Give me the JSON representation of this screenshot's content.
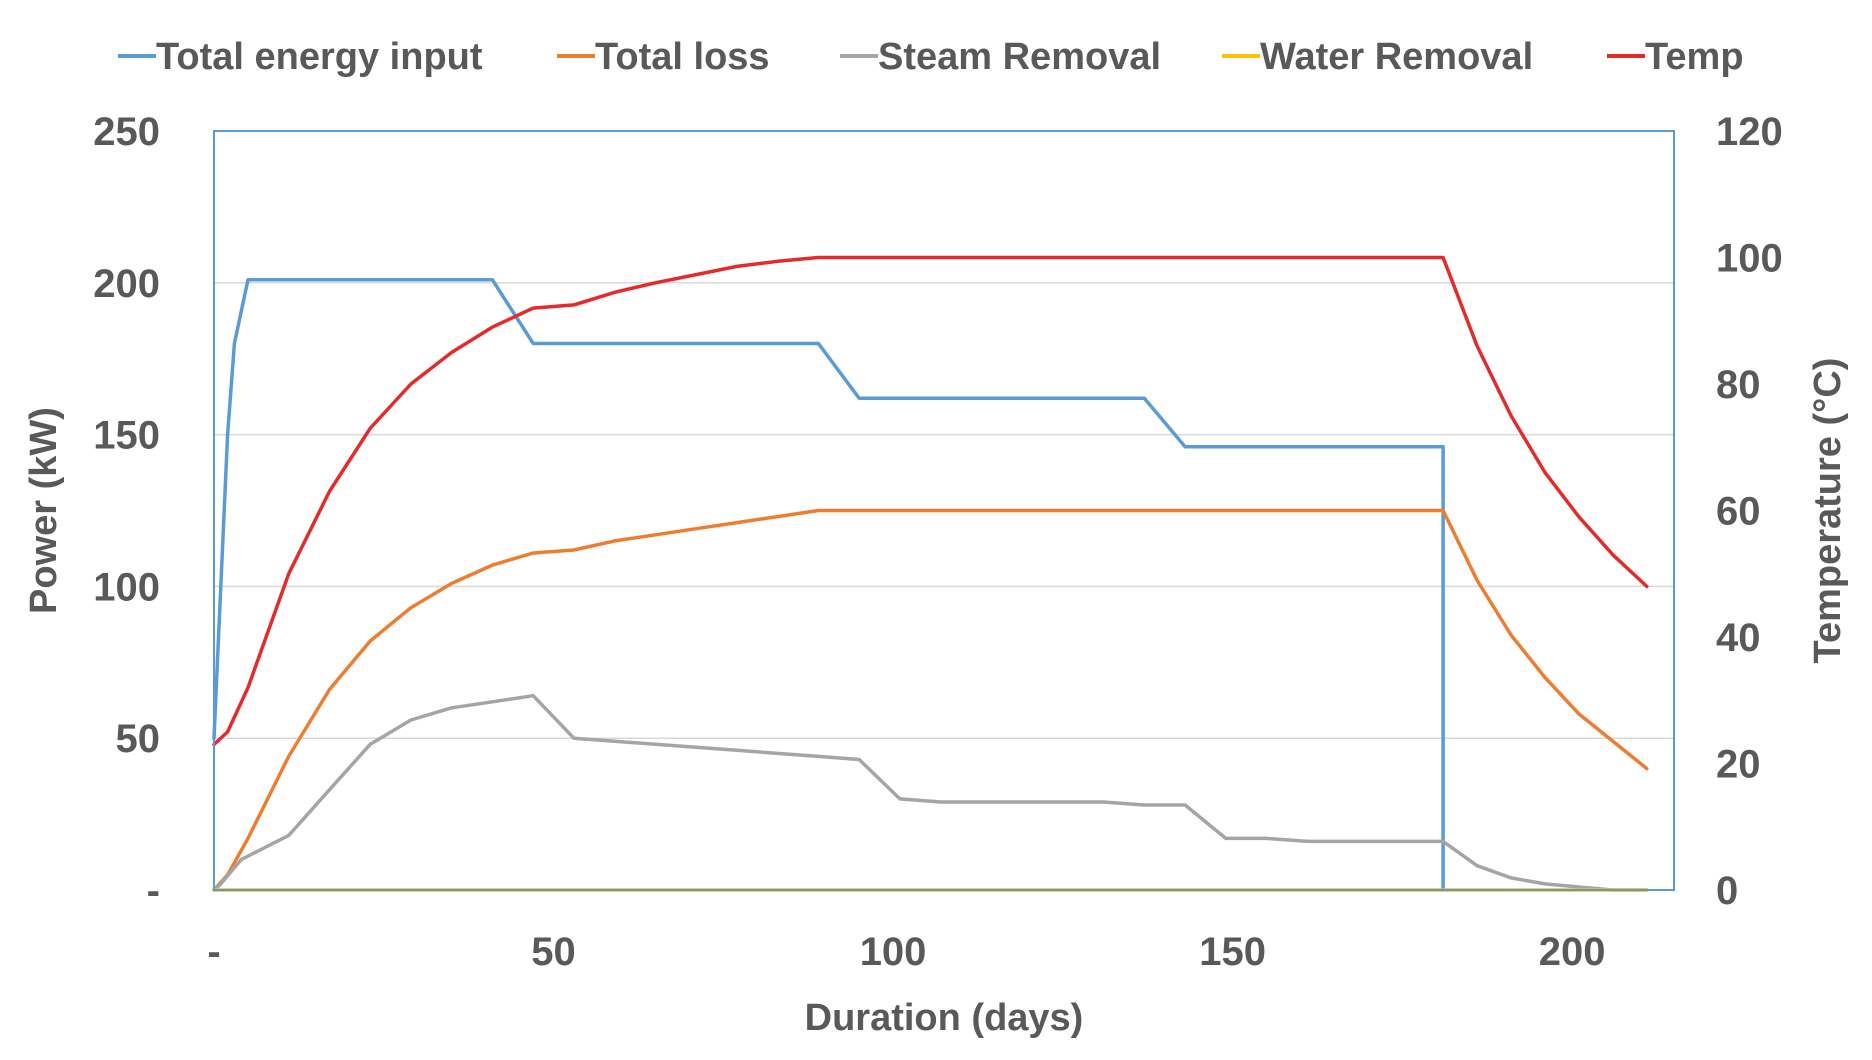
{
  "chart_data": {
    "type": "line",
    "xlabel": "Duration (days)",
    "ylabel": "Power (kW)",
    "y2label": "Temperature (°C)",
    "xlim": [
      0,
      215
    ],
    "ylim": [
      0,
      250
    ],
    "y2lim": [
      0,
      120
    ],
    "x_ticks": [
      0,
      50,
      100,
      150,
      200
    ],
    "x_tick_labels": [
      "-",
      "50",
      "100",
      "150",
      "200"
    ],
    "y_ticks": [
      0,
      50,
      100,
      150,
      200,
      250
    ],
    "y_tick_labels": [
      "-",
      "50",
      "100",
      "150",
      "200",
      "250"
    ],
    "y2_ticks": [
      0,
      20,
      40,
      60,
      80,
      100,
      120
    ],
    "y2_tick_labels": [
      "0",
      "20",
      "40",
      "60",
      "80",
      "100",
      "120"
    ],
    "grid": "horizontal",
    "legend_position": "top",
    "series": [
      {
        "name": "Total energy input",
        "color": "#5b9bd5",
        "axis": "left",
        "points": [
          [
            0,
            50
          ],
          [
            2,
            150
          ],
          [
            3,
            180
          ],
          [
            5,
            201
          ],
          [
            41,
            201
          ],
          [
            47,
            180
          ],
          [
            89,
            180
          ],
          [
            95,
            162
          ],
          [
            137,
            162
          ],
          [
            143,
            146
          ],
          [
            181,
            146
          ],
          [
            181,
            0
          ]
        ]
      },
      {
        "name": "Total loss",
        "color": "#ed7d31",
        "axis": "left",
        "points": [
          [
            0,
            0
          ],
          [
            2,
            5
          ],
          [
            5,
            17
          ],
          [
            11,
            44
          ],
          [
            17,
            66
          ],
          [
            23,
            82
          ],
          [
            29,
            93
          ],
          [
            35,
            101
          ],
          [
            41,
            107
          ],
          [
            47,
            111
          ],
          [
            53,
            112
          ],
          [
            59,
            115
          ],
          [
            65,
            117
          ],
          [
            71,
            119
          ],
          [
            77,
            121
          ],
          [
            83,
            123
          ],
          [
            89,
            125
          ],
          [
            137,
            125
          ],
          [
            181,
            125
          ],
          [
            186,
            102
          ],
          [
            191,
            84
          ],
          [
            196,
            70
          ],
          [
            201,
            58
          ],
          [
            206,
            49
          ],
          [
            211,
            40
          ]
        ]
      },
      {
        "name": "Steam Removal",
        "color": "#a5a5a5",
        "axis": "left",
        "points": [
          [
            0,
            0
          ],
          [
            1,
            2
          ],
          [
            4,
            10
          ],
          [
            11,
            18
          ],
          [
            17,
            33
          ],
          [
            23,
            48
          ],
          [
            29,
            56
          ],
          [
            35,
            60
          ],
          [
            41,
            62
          ],
          [
            47,
            64
          ],
          [
            53,
            50
          ],
          [
            59,
            49
          ],
          [
            65,
            48
          ],
          [
            71,
            47
          ],
          [
            77,
            46
          ],
          [
            83,
            45
          ],
          [
            89,
            44
          ],
          [
            95,
            43
          ],
          [
            101,
            30
          ],
          [
            107,
            29
          ],
          [
            113,
            29
          ],
          [
            119,
            29
          ],
          [
            125,
            29
          ],
          [
            131,
            29
          ],
          [
            137,
            28
          ],
          [
            143,
            28
          ],
          [
            149,
            17
          ],
          [
            155,
            17
          ],
          [
            161,
            16
          ],
          [
            167,
            16
          ],
          [
            173,
            16
          ],
          [
            181,
            16
          ],
          [
            186,
            8
          ],
          [
            191,
            4
          ],
          [
            196,
            2
          ],
          [
            201,
            1
          ],
          [
            206,
            0
          ],
          [
            211,
            0
          ]
        ]
      },
      {
        "name": "Water Removal",
        "color": "#ffc000",
        "axis": "left",
        "points": [
          [
            0,
            0
          ],
          [
            211,
            0
          ]
        ]
      },
      {
        "name": "Temp",
        "color": "#e32b2b",
        "axis": "right",
        "points": [
          [
            0,
            23
          ],
          [
            2,
            25
          ],
          [
            5,
            32
          ],
          [
            11,
            50
          ],
          [
            17,
            63
          ],
          [
            23,
            73
          ],
          [
            29,
            80
          ],
          [
            35,
            85
          ],
          [
            41,
            89
          ],
          [
            47,
            92
          ],
          [
            53,
            92.5
          ],
          [
            59,
            94.5
          ],
          [
            65,
            96
          ],
          [
            71,
            97.3
          ],
          [
            77,
            98.6
          ],
          [
            83,
            99.4
          ],
          [
            89,
            100
          ],
          [
            137,
            100
          ],
          [
            181,
            100
          ],
          [
            186,
            86
          ],
          [
            191,
            75
          ],
          [
            196,
            66
          ],
          [
            201,
            59
          ],
          [
            206,
            53
          ],
          [
            211,
            48
          ]
        ]
      }
    ]
  }
}
